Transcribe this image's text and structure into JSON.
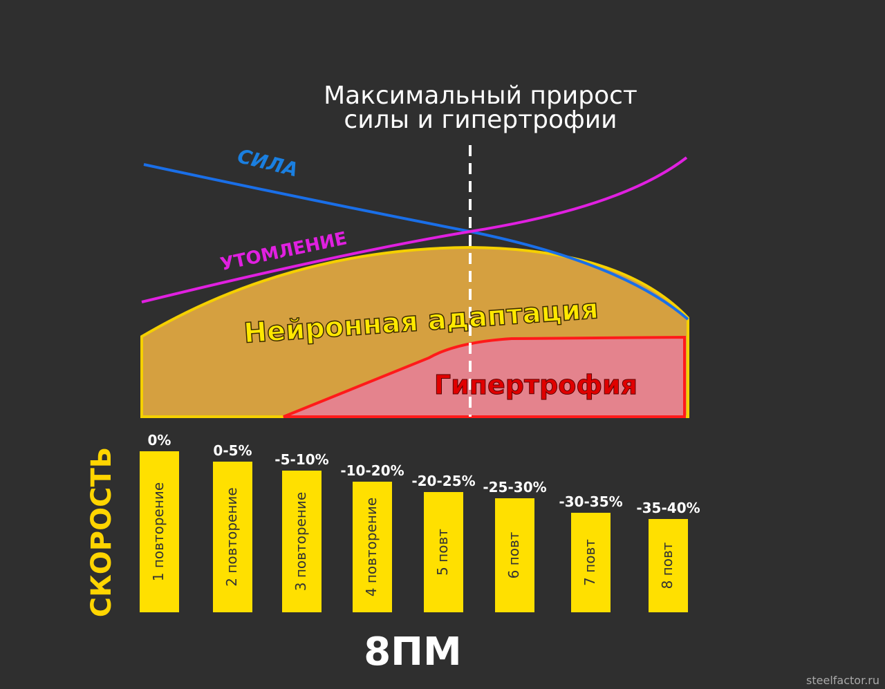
{
  "header": {
    "title_line1": "Максимальный прирост",
    "title_line2": "силы и гипертрофии"
  },
  "curves": {
    "strength": "СИЛА",
    "fatigue": "УТОМЛЕНИЕ"
  },
  "areas": {
    "neural": "Нейронная адаптация",
    "hypertrophy": "Гипертрофия"
  },
  "axis_label": "СКОРОСТЬ",
  "reps": [
    {
      "drop": "0%",
      "label": "1 повторение"
    },
    {
      "drop": "0-5%",
      "label": "2 повторение"
    },
    {
      "drop": "-5-10%",
      "label": "3 повторение"
    },
    {
      "drop": "-10-20%",
      "label": "4 повторение"
    },
    {
      "drop": "-20-25%",
      "label": "5 повт"
    },
    {
      "drop": "-25-30%",
      "label": "6 повт"
    },
    {
      "drop": "-30-35%",
      "label": "7 повт"
    },
    {
      "drop": "-35-40%",
      "label": "8 повт"
    }
  ],
  "footer": {
    "title": "8ПМ",
    "watermark": "steelfactor.ru"
  }
}
